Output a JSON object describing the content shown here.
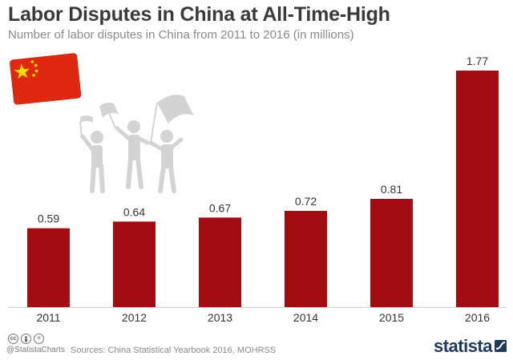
{
  "header": {
    "title": "Labor Disputes in China at All-Time-High",
    "subtitle": "Number of labor disputes in China from 2011 to 2016 (in millions)"
  },
  "footer": {
    "license_icons": [
      "cc-icon",
      "person-icon",
      "equals-icon"
    ],
    "handle": "@StatistaCharts",
    "source": "Sources: China Statistical Yearbook 2016, MOHRSS",
    "brand": "statista"
  },
  "colors": {
    "bar": "#a30c10",
    "flag_red": "#de2910",
    "flag_star": "#ffde00",
    "protester_gray": "#d3d3d3"
  },
  "chart_data": {
    "type": "bar",
    "title": "Labor Disputes in China at All-Time-High",
    "subtitle": "Number of labor disputes in China from 2011 to 2016 (in millions)",
    "categories": [
      "2011",
      "2012",
      "2013",
      "2014",
      "2015",
      "2016"
    ],
    "values": [
      0.59,
      0.64,
      0.67,
      0.72,
      0.81,
      1.77
    ],
    "value_labels": [
      "0.59",
      "0.64",
      "0.67",
      "0.72",
      "0.81",
      "1.77"
    ],
    "xlabel": "",
    "ylabel": "",
    "ylim": [
      0,
      1.77
    ],
    "grid": false,
    "legend": "none"
  }
}
